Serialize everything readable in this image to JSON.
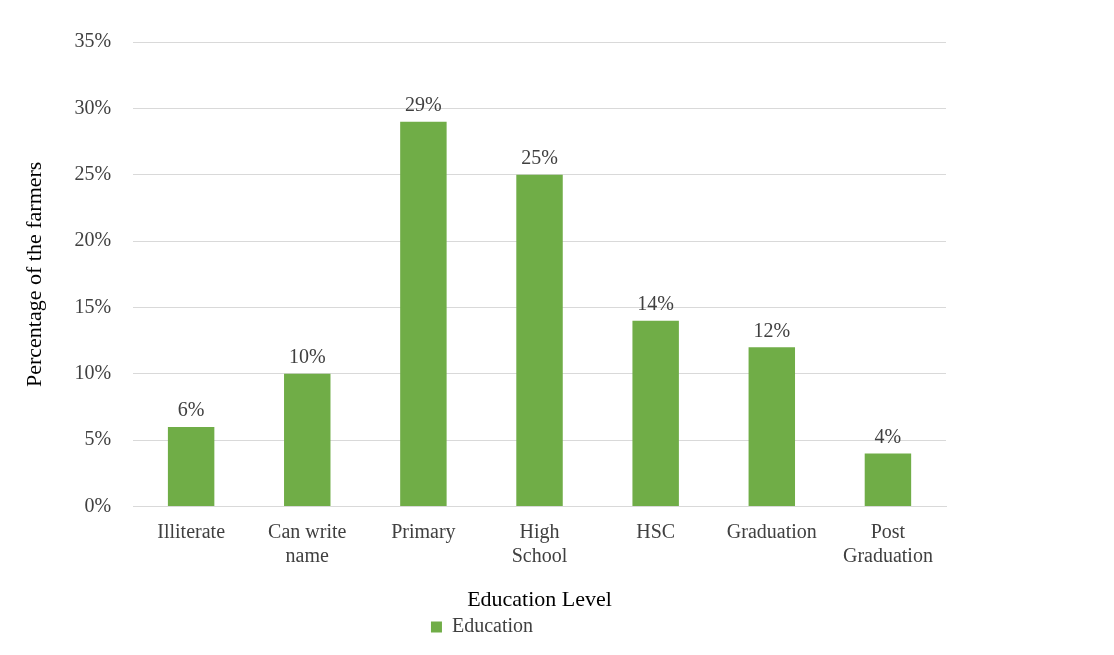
{
  "chart_data": {
    "type": "bar",
    "xlabel": "Education Level",
    "ylabel": "Percentage of the farmers",
    "categories": [
      "Illiterate",
      "Can write name",
      "Primary",
      "High School",
      "HSC",
      "Graduation",
      "Post Graduation"
    ],
    "series": [
      {
        "name": "Education",
        "color": "#70ad47",
        "values": [
          6,
          10,
          29,
          25,
          14,
          12,
          4
        ],
        "value_labels": [
          "6%",
          "10%",
          "29%",
          "25%",
          "14%",
          "12%",
          "4%"
        ]
      }
    ],
    "ylim": [
      0,
      35
    ],
    "yticks": [
      {
        "value": 0,
        "label": "0%"
      },
      {
        "value": 5,
        "label": "5%"
      },
      {
        "value": 10,
        "label": "10%"
      },
      {
        "value": 15,
        "label": "15%"
      },
      {
        "value": 20,
        "label": "20%"
      },
      {
        "value": 25,
        "label": "25%"
      },
      {
        "value": 30,
        "label": "30%"
      },
      {
        "value": 35,
        "label": "35%"
      }
    ],
    "grid": "y",
    "legend": "bottom"
  }
}
